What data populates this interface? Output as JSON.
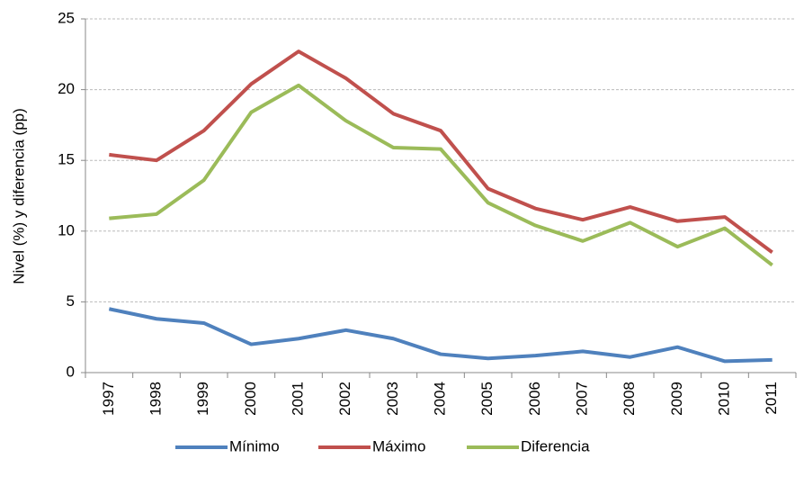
{
  "chart_data": {
    "type": "line",
    "y_label": "Nivel (%) y diferencia (pp)",
    "categories": [
      "1997",
      "1998",
      "1999",
      "2000",
      "2001",
      "2002",
      "2003",
      "2004",
      "2005",
      "2006",
      "2007",
      "2008",
      "2009",
      "2010",
      "2011"
    ],
    "series": [
      {
        "name": "Mínimo",
        "color": "#4f81bd",
        "values": [
          4.5,
          3.8,
          3.5,
          2.0,
          2.4,
          3.0,
          2.4,
          1.3,
          1.0,
          1.2,
          1.5,
          1.1,
          1.8,
          0.8,
          0.9
        ]
      },
      {
        "name": "Máximo",
        "color": "#c0504d",
        "values": [
          15.4,
          15.0,
          17.1,
          20.4,
          22.7,
          20.8,
          18.3,
          17.1,
          13.0,
          11.6,
          10.8,
          11.7,
          10.7,
          11.0,
          8.5
        ]
      },
      {
        "name": "Diferencia",
        "color": "#9bbb59",
        "values": [
          10.9,
          11.2,
          13.6,
          18.4,
          20.3,
          17.8,
          15.9,
          15.8,
          12.0,
          10.4,
          9.3,
          10.6,
          8.9,
          10.2,
          7.6
        ]
      }
    ],
    "ylim": [
      0,
      25
    ],
    "yticks": [
      0,
      5,
      10,
      15,
      20,
      25
    ],
    "grid": true,
    "legend": "bottom"
  }
}
